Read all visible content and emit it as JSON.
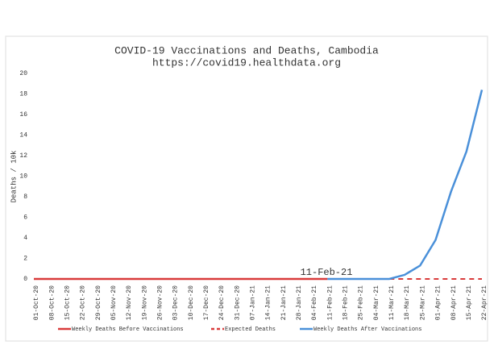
{
  "chart_data": {
    "type": "line",
    "title": "COVID-19 Vaccinations and Deaths, Cambodia",
    "subtitle": "https://covid19.healthdata.org",
    "y_label": "Deaths / 10k",
    "annotation": "11-Feb-21",
    "categories": [
      "01-Oct-20",
      "08-Oct-20",
      "15-Oct-20",
      "22-Oct-20",
      "29-Oct-20",
      "05-Nov-20",
      "12-Nov-20",
      "19-Nov-20",
      "26-Nov-20",
      "03-Dec-20",
      "10-Dec-20",
      "17-Dec-20",
      "24-Dec-20",
      "31-Dec-20",
      "07-Jan-21",
      "14-Jan-21",
      "21-Jan-21",
      "28-Jan-21",
      "04-Feb-21",
      "11-Feb-21",
      "18-Feb-21",
      "25-Feb-21",
      "04-Mar-21",
      "11-Mar-21",
      "18-Mar-21",
      "25-Mar-21",
      "01-Apr-21",
      "08-Apr-21",
      "15-Apr-21",
      "22-Apr-21"
    ],
    "series": [
      {
        "name": "Weekly Deaths Before Vaccinations",
        "color": "#d93b3b",
        "dash": false,
        "values": [
          0,
          0,
          0,
          0,
          0,
          0,
          0,
          0,
          0,
          0,
          0,
          0,
          0,
          0,
          0,
          0,
          0,
          0,
          0,
          0,
          null,
          null,
          null,
          null,
          null,
          null,
          null,
          null,
          null,
          null
        ]
      },
      {
        "name": "Expected Deaths",
        "color": "#d93b3b",
        "dash": true,
        "values": [
          null,
          null,
          null,
          null,
          null,
          null,
          null,
          null,
          null,
          null,
          null,
          null,
          null,
          null,
          null,
          null,
          null,
          null,
          null,
          0,
          0,
          0,
          0,
          0,
          0,
          0,
          0,
          0,
          0,
          0
        ]
      },
      {
        "name": "Weekly Deaths After Vaccinations",
        "color": "#4a90d9",
        "dash": false,
        "values": [
          null,
          null,
          null,
          null,
          null,
          null,
          null,
          null,
          null,
          null,
          null,
          null,
          null,
          null,
          null,
          null,
          null,
          null,
          null,
          0,
          0,
          0,
          0,
          0,
          0.4,
          1.3,
          3.8,
          8.5,
          12.4,
          18.4
        ]
      }
    ],
    "ylim": [
      0,
      20
    ],
    "yticks": [
      0,
      2,
      4,
      6,
      8,
      10,
      12,
      14,
      16,
      18,
      20
    ],
    "grid": false
  }
}
